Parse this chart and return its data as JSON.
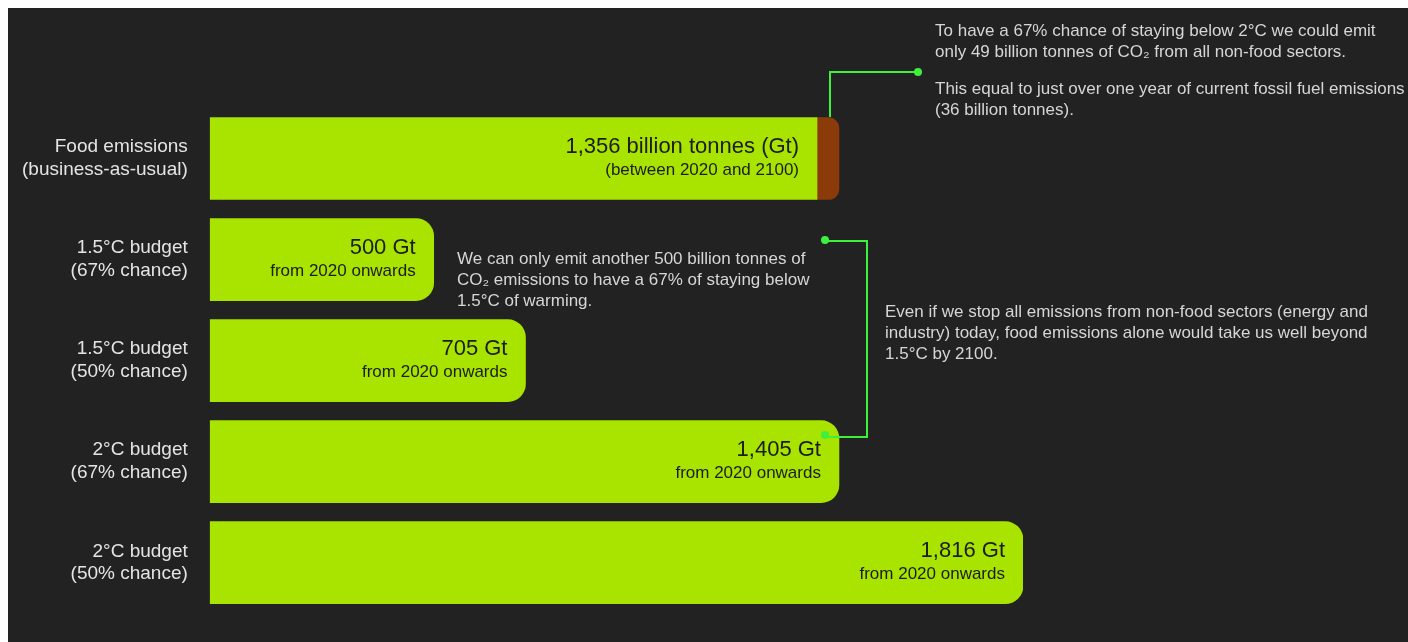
{
  "chart_data": {
    "type": "bar",
    "orientation": "horizontal",
    "stacked": true,
    "tick_labels": "y",
    "legend": false,
    "categories": [
      "Food emissions\n(business-as-usual)",
      "1.5°C budget\n(67% chance)",
      "1.5°C budget\n(50% chance)",
      "2°C budget\n(67% chance)",
      "2°C budget\n(50% chance)"
    ],
    "series": [
      {
        "color": "#a8e400",
        "values": [
          1356,
          500,
          705,
          1405,
          1816
        ],
        "value_labels": [
          "1,356 billion tonnes (Gt)",
          "500 Gt\nfrom 2020 onwards",
          "705 Gt\nfrom 2020 onwards",
          "1,405 Gt\nfrom 2020 onwards",
          "1,816 Gt\nfrom 2020 onwards"
        ]
      },
      {
        "color": "#8b3a0a",
        "values": [
          49,
          null,
          null,
          null,
          null
        ]
      }
    ],
    "annotations": [
      {
        "text": "(between 2020 and 2100)",
        "x": 1356,
        "y": "Food emissions\n(business-as-usual)"
      },
      "To have a 67% chance of staying below 2°C we could emit only 49 billion tonnes of CO₂ from all non-food sectors.",
      "This equal to just over one year of current fossil fuel emissions (36 billion tonnes).",
      "We can only emit another 500 billion tonnes of CO₂ emissions to have a 67% of staying below 1.5°C of warming.",
      "Even if we stop all emissions from non-food sectors (energy and industry) today, food emissions alone would take us well beyond 1.5°C by 2100."
    ]
  }
}
